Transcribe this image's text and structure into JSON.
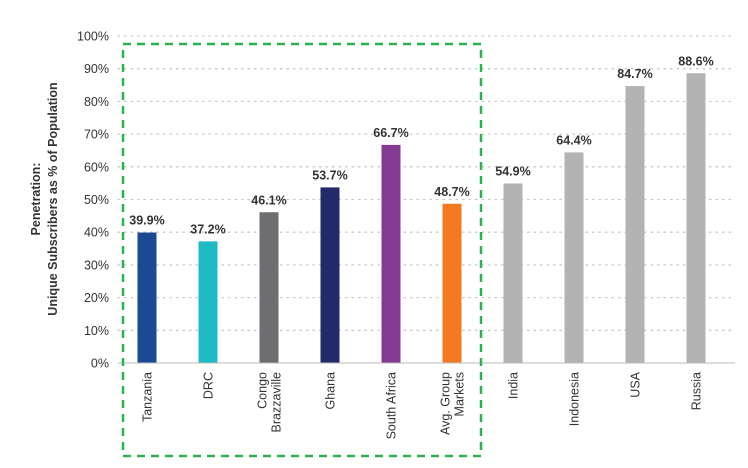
{
  "chart_data": {
    "type": "bar",
    "categories": [
      [
        "Tanzania"
      ],
      [
        "DRC"
      ],
      [
        "Congo",
        "Brazzaville"
      ],
      [
        "Ghana"
      ],
      [
        "South Africa"
      ],
      [
        "Avg. Group",
        "Markets"
      ],
      [
        "India"
      ],
      [
        "Indonesia"
      ],
      [
        "USA"
      ],
      [
        "Russia"
      ]
    ],
    "values": [
      39.9,
      37.2,
      46.1,
      53.7,
      66.7,
      48.7,
      54.9,
      64.4,
      84.7,
      88.6
    ],
    "value_labels": [
      "39.9%",
      "37.2%",
      "46.1%",
      "53.7%",
      "66.7%",
      "48.7%",
      "54.9%",
      "64.4%",
      "84.7%",
      "88.6%"
    ],
    "colors": [
      "#1b4a93",
      "#1fbac6",
      "#6e6e70",
      "#232a69",
      "#823a93",
      "#f47a21",
      "#b3b3b3",
      "#b3b3b3",
      "#b3b3b3",
      "#b3b3b3"
    ],
    "ylabel": [
      "Penetration:",
      "Unique Subscribers as % of Population"
    ],
    "ylim": [
      0,
      100
    ],
    "yticks": [
      "0%",
      "10%",
      "20%",
      "30%",
      "40%",
      "50%",
      "60%",
      "70%",
      "80%",
      "90%",
      "100%"
    ],
    "grid": "dotted horizontal",
    "highlight_group": {
      "first_index": 0,
      "last_index": 5,
      "border_color": "#2bb24c",
      "style": "dashed"
    }
  }
}
